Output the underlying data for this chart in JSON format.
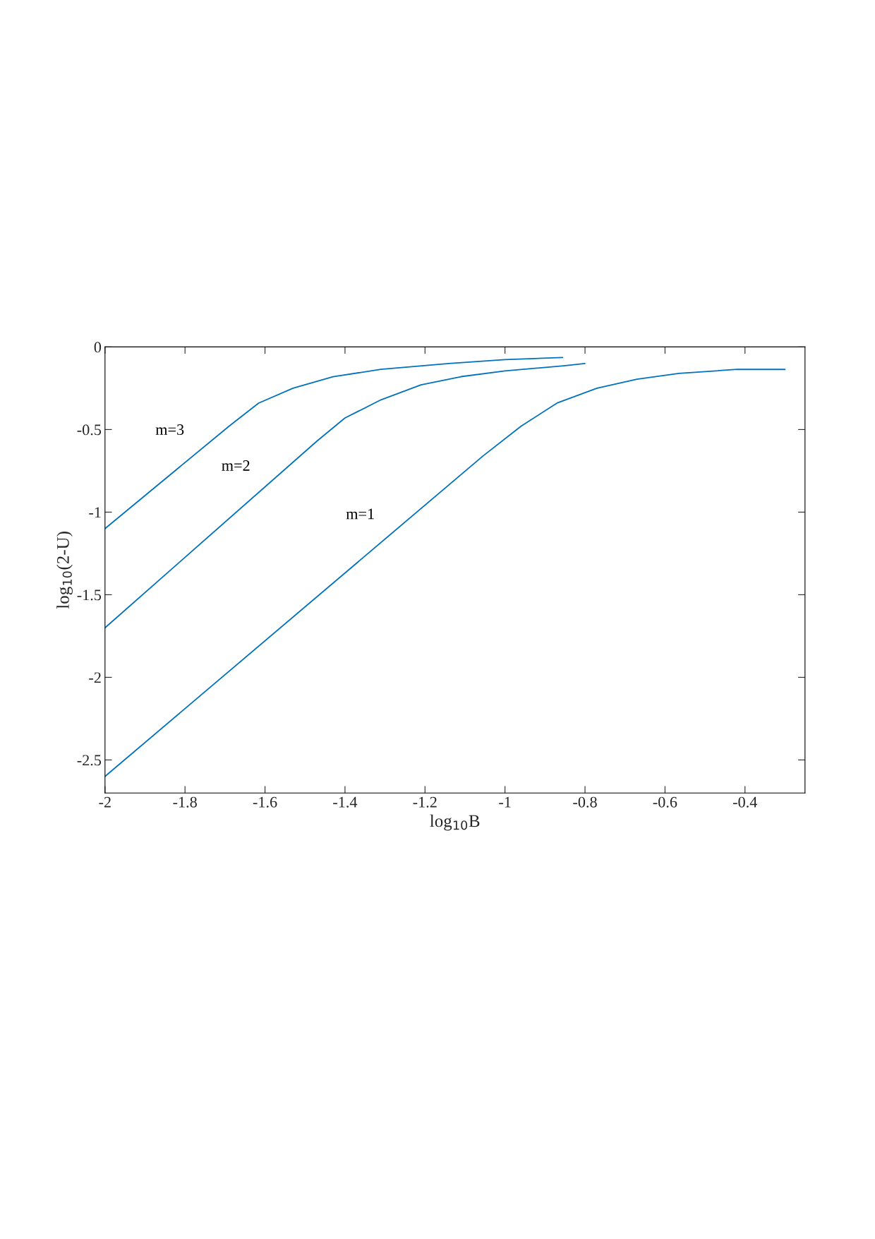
{
  "chart_data": {
    "type": "line",
    "xlabel": "log$_{10}$B",
    "ylabel": "log$_{10}$(2-U)",
    "xlim": [
      -2,
      -0.25
    ],
    "ylim": [
      -2.7,
      0
    ],
    "xticks": [
      -2,
      -1.8,
      -1.6,
      -1.4,
      -1.2,
      -1,
      -0.8,
      -0.6,
      -0.4
    ],
    "yticks": [
      -2.5,
      -2,
      -1.5,
      -1,
      -0.5,
      0
    ],
    "grid": false,
    "legend": false,
    "marker": "none",
    "line_style": "solid",
    "series": [
      {
        "name": "m=1",
        "color": "#0072bd",
        "x": [
          -2,
          -1.055,
          -0.96,
          -0.87,
          -0.77,
          -0.67,
          -0.565,
          -0.42,
          -0.3
        ],
        "values": [
          -2.6,
          -0.66,
          -0.48,
          -0.34,
          -0.25,
          -0.195,
          -0.16,
          -0.136,
          -0.136
        ]
      },
      {
        "name": "m=2",
        "color": "#0072bd",
        "x": [
          -2,
          -1.47,
          -1.4,
          -1.31,
          -1.21,
          -1.11,
          -1.0,
          -0.853,
          -0.8
        ],
        "values": [
          -1.7,
          -0.57,
          -0.43,
          -0.32,
          -0.23,
          -0.18,
          -0.145,
          -0.114,
          -0.1
        ]
      },
      {
        "name": "m=3",
        "color": "#0072bd",
        "x": [
          -2,
          -1.69,
          -1.616,
          -1.53,
          -1.43,
          -1.31,
          -1.14,
          -1.0,
          -0.856
        ],
        "values": [
          -1.1,
          -0.48,
          -0.34,
          -0.25,
          -0.18,
          -0.136,
          -0.1,
          -0.077,
          -0.064
        ]
      }
    ]
  }
}
